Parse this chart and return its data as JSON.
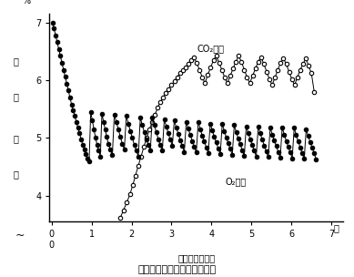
{
  "title": "図３　貯蔵中ガス濃度の変化",
  "xlabel": "貯　蔵　日　数",
  "ylabel_pct": "%",
  "xlabel_day": "日",
  "ylim": [
    3.55,
    7.15
  ],
  "xlim": [
    -0.05,
    7.3
  ],
  "yticks": [
    4,
    5,
    6,
    7
  ],
  "xticks": [
    0,
    1,
    2,
    3,
    4,
    5,
    6,
    7
  ],
  "co2_label": "CO₂濃度",
  "o2_label": "O₂濃度",
  "co2_x": [
    1.72,
    1.8,
    1.88,
    1.96,
    2.03,
    2.1,
    2.17,
    2.24,
    2.31,
    2.38,
    2.45,
    2.52,
    2.59,
    2.65,
    2.72,
    2.79,
    2.86,
    2.93,
    3.0,
    3.07,
    3.14,
    3.21,
    3.28,
    3.35,
    3.42,
    3.49,
    3.56,
    3.63,
    3.7,
    3.77,
    3.84,
    3.91,
    3.98,
    4.05,
    4.12,
    4.19,
    4.26,
    4.33,
    4.4,
    4.47,
    4.54,
    4.61,
    4.68,
    4.75,
    4.82,
    4.89,
    4.96,
    5.03,
    5.1,
    5.17,
    5.24,
    5.31,
    5.38,
    5.45,
    5.52,
    5.59,
    5.66,
    5.73,
    5.8,
    5.87,
    5.94,
    6.01,
    6.08,
    6.15,
    6.22,
    6.29,
    6.36,
    6.43,
    6.5,
    6.57
  ],
  "co2_y": [
    3.62,
    3.75,
    3.88,
    4.02,
    4.18,
    4.35,
    4.52,
    4.68,
    4.85,
    5.0,
    5.15,
    5.28,
    5.4,
    5.52,
    5.62,
    5.7,
    5.78,
    5.85,
    5.92,
    5.98,
    6.05,
    6.12,
    6.18,
    6.22,
    6.28,
    6.35,
    6.4,
    6.3,
    6.18,
    6.05,
    5.95,
    6.1,
    6.22,
    6.35,
    6.42,
    6.3,
    6.18,
    6.05,
    5.95,
    6.08,
    6.2,
    6.32,
    6.42,
    6.32,
    6.18,
    6.05,
    5.95,
    6.08,
    6.2,
    6.32,
    6.4,
    6.28,
    6.15,
    6.02,
    5.92,
    6.05,
    6.18,
    6.3,
    6.38,
    6.28,
    6.15,
    6.02,
    5.92,
    6.05,
    6.18,
    6.28,
    6.38,
    6.25,
    6.12,
    5.8
  ],
  "o2_x": [
    0.02,
    0.06,
    0.1,
    0.14,
    0.18,
    0.22,
    0.26,
    0.3,
    0.34,
    0.38,
    0.42,
    0.46,
    0.5,
    0.54,
    0.58,
    0.62,
    0.66,
    0.7,
    0.74,
    0.78,
    0.82,
    0.86,
    0.9,
    0.94,
    0.98,
    1.02,
    1.06,
    1.1,
    1.14,
    1.18,
    1.22,
    1.26,
    1.3,
    1.34,
    1.38,
    1.42,
    1.47,
    1.52,
    1.57,
    1.62,
    1.67,
    1.72,
    1.77,
    1.82,
    1.87,
    1.92,
    1.97,
    2.02,
    2.07,
    2.12,
    2.17,
    2.22,
    2.27,
    2.32,
    2.37,
    2.42,
    2.47,
    2.52,
    2.57,
    2.62,
    2.67,
    2.72,
    2.77,
    2.82,
    2.87,
    2.92,
    2.97,
    3.02,
    3.07,
    3.12,
    3.17,
    3.22,
    3.27,
    3.32,
    3.37,
    3.42,
    3.47,
    3.52,
    3.57,
    3.62,
    3.67,
    3.72,
    3.77,
    3.82,
    3.87,
    3.92,
    3.97,
    4.02,
    4.07,
    4.12,
    4.17,
    4.22,
    4.27,
    4.32,
    4.37,
    4.42,
    4.47,
    4.52,
    4.57,
    4.62,
    4.67,
    4.72,
    4.77,
    4.82,
    4.87,
    4.92,
    4.97,
    5.02,
    5.07,
    5.12,
    5.17,
    5.22,
    5.27,
    5.32,
    5.37,
    5.42,
    5.47,
    5.52,
    5.57,
    5.62,
    5.67,
    5.72,
    5.77,
    5.82,
    5.87,
    5.92,
    5.97,
    6.02,
    6.07,
    6.12,
    6.17,
    6.22,
    6.27,
    6.32,
    6.37,
    6.42,
    6.47,
    6.52,
    6.57,
    6.62
  ],
  "o2_y": [
    7.0,
    6.9,
    6.78,
    6.66,
    6.54,
    6.42,
    6.3,
    6.18,
    6.06,
    5.94,
    5.82,
    5.7,
    5.58,
    5.48,
    5.38,
    5.28,
    5.18,
    5.08,
    4.98,
    4.88,
    4.8,
    4.72,
    4.65,
    4.6,
    5.45,
    5.3,
    5.15,
    5.0,
    4.88,
    4.78,
    4.68,
    5.42,
    5.28,
    5.15,
    5.02,
    4.9,
    4.8,
    4.7,
    5.4,
    5.28,
    5.15,
    5.02,
    4.9,
    4.8,
    5.38,
    5.25,
    5.12,
    5.0,
    4.88,
    4.78,
    4.68,
    5.35,
    5.22,
    5.1,
    4.98,
    4.88,
    4.78,
    5.35,
    5.22,
    5.1,
    4.98,
    4.88,
    4.78,
    5.32,
    5.2,
    5.08,
    4.97,
    4.87,
    5.3,
    5.18,
    5.07,
    4.96,
    4.86,
    4.76,
    5.28,
    5.16,
    5.05,
    4.95,
    4.85,
    4.75,
    5.28,
    5.15,
    5.04,
    4.94,
    4.84,
    4.74,
    5.25,
    5.13,
    5.02,
    4.92,
    4.82,
    4.72,
    5.25,
    5.12,
    5.01,
    4.91,
    4.81,
    4.71,
    5.22,
    5.1,
    4.99,
    4.89,
    4.79,
    4.69,
    5.2,
    5.08,
    4.98,
    4.88,
    4.78,
    4.68,
    5.2,
    5.08,
    4.97,
    4.87,
    4.77,
    4.67,
    5.18,
    5.06,
    4.96,
    4.86,
    4.76,
    4.66,
    5.18,
    5.06,
    4.95,
    4.85,
    4.75,
    4.65,
    5.18,
    5.05,
    4.94,
    4.84,
    4.74,
    4.64,
    5.15,
    5.03,
    4.93,
    4.83,
    4.73,
    4.63
  ],
  "bg_color": "#ffffff",
  "line_color": "#000000"
}
